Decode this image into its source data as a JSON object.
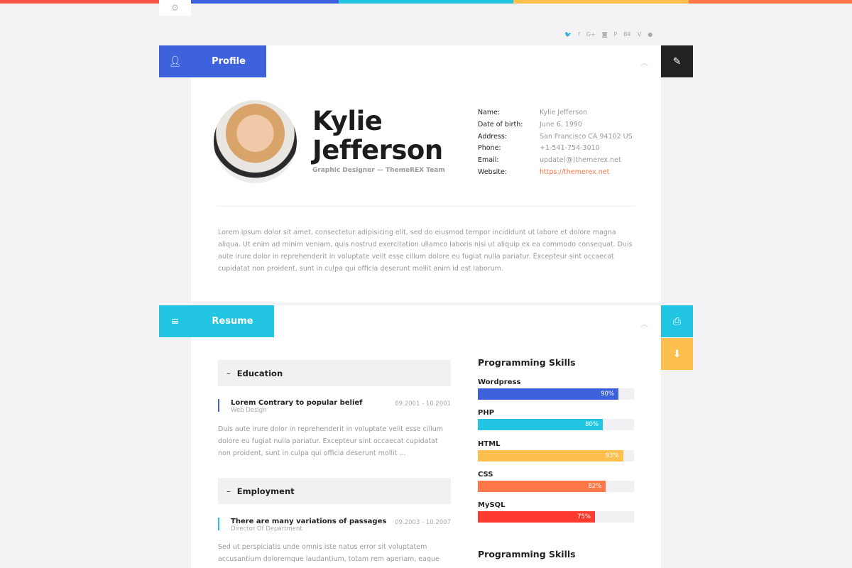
{
  "colors": {
    "red": "#ff5448",
    "blue": "#3d62dc",
    "cyan": "#22c6e3",
    "yellow": "#fdc04e",
    "orange": "#ff7648",
    "dark": "#222222"
  },
  "social_icons": [
    "twitter-icon",
    "facebook-icon",
    "google-plus-icon",
    "instagram-icon",
    "pinterest-icon",
    "behance-icon",
    "vimeo-icon",
    "dribbble-icon"
  ],
  "social_glyphs": [
    "🐦",
    "f",
    "G+",
    "◙",
    "P",
    "Bē",
    "V",
    "●"
  ],
  "profile": {
    "tab_label": "Profile",
    "name_line1": "Kylie",
    "name_line2": "Jefferson",
    "subtitle": "Graphic Designer — ThemeREX Team",
    "info": [
      {
        "k": "Name:",
        "v": "Kylie Jefferson"
      },
      {
        "k": "Date of birth:",
        "v": "June 6, 1990"
      },
      {
        "k": "Address:",
        "v": "San Francisco CA 94102 US"
      },
      {
        "k": "Phone:",
        "v": "+1-541-754-3010"
      },
      {
        "k": "Email:",
        "v": "update(@)themerex.net"
      },
      {
        "k": "Website:",
        "v": "https://themerex.net"
      }
    ],
    "bio": "Lorem ipsum dolor sit amet, consectetur adipisicing elit, sed do eiusmod tempor incididunt ut labore et dolore magna aliqua. Ut enim ad minim veniam, quis nostrud exercitation ullamco laboris nisi ut aliquip ex ea commodo consequat. Duis aute irure dolor in reprehenderit in voluptate velit esse cillum dolore eu fugiat nulla pariatur. Excepteur sint occaecat cupidatat non proident, sunt in culpa qui officia deserunt mollit anim id est laborum."
  },
  "resume": {
    "tab_label": "Resume",
    "education": {
      "title": "Education",
      "entry_title": "Lorem Contrary to popular belief",
      "entry_sub": "Web Design",
      "dates": "09.2001 - 10.2001",
      "text": "Duis aute irure dolor in reprehenderit in voluptate velit esse cillum dolore eu fugiat nulla pariatur. Excepteur sint occaecat cupidatat non proident, sunt in culpa qui officia deserunt mollit ..."
    },
    "employment": {
      "title": "Employment",
      "entry_title": "There are many variations of passages",
      "entry_sub": "Director Of Department",
      "dates": "09.2003 - 10.2007",
      "text": "Sed ut perspiciatis unde omnis iste natus error sit voluptatem accusantium doloremque laudantium, totam rem aperiam, eaque"
    },
    "skills_title": "Programming Skills",
    "skills_title2": "Programming Skills",
    "skills": [
      {
        "name": "Wordpress",
        "pct": 90,
        "label": "90%",
        "color": "#3d62dc"
      },
      {
        "name": "PHP",
        "pct": 80,
        "label": "80%",
        "color": "#22c6e3"
      },
      {
        "name": "HTML",
        "pct": 93,
        "label": "93%",
        "color": "#fdc04e"
      },
      {
        "name": "CSS",
        "pct": 82,
        "label": "82%",
        "color": "#ff7648"
      },
      {
        "name": "MySQL",
        "pct": 75,
        "label": "75%",
        "color": "#ff3b30"
      }
    ]
  }
}
